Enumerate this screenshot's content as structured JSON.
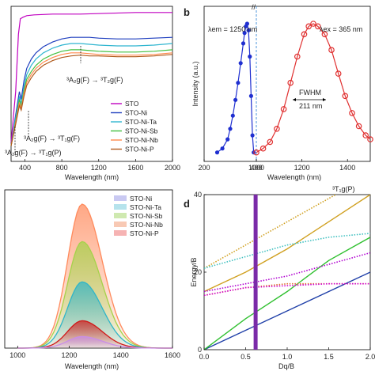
{
  "chart_data": [
    {
      "id": "a",
      "panel_label": "",
      "type": "line",
      "xlabel": "Wavelength (nm)",
      "xlim": [
        250,
        2000
      ],
      "x_ticks": [
        "400",
        "800",
        "1200",
        "1600",
        "2000"
      ],
      "legend": [
        "STO",
        "STO-Ni",
        "STO-Ni-Ta",
        "STO-Ni-Sb",
        "STO-Ni-Nb",
        "STO-Ni-P"
      ],
      "colors": [
        "#c000c0",
        "#1f3fbf",
        "#2fb5d0",
        "#44c040",
        "#ff8a4c",
        "#b05a1c"
      ],
      "annotations": [
        "³A₂g(F) → ³T₂g(F)",
        "³A₂g(F) → ³T₁g(F)",
        "³A₂g(F) → ³T₁g(P)"
      ],
      "series": [
        {
          "name": "STO",
          "x": [
            250,
            300,
            330,
            350,
            380,
            420,
            500,
            700,
            1000,
            1300,
            1600,
            2000
          ],
          "y": [
            0.12,
            0.45,
            0.82,
            0.92,
            0.93,
            0.94,
            0.945,
            0.95,
            0.95,
            0.955,
            0.96,
            0.96
          ]
        },
        {
          "name": "STO-Ni",
          "x": [
            250,
            300,
            340,
            360,
            390,
            420,
            470,
            520,
            600,
            700,
            800,
            900,
            1000,
            1100,
            1200,
            1400,
            1600,
            1800,
            2000
          ],
          "y": [
            0.1,
            0.3,
            0.45,
            0.4,
            0.52,
            0.6,
            0.66,
            0.7,
            0.74,
            0.77,
            0.79,
            0.8,
            0.8,
            0.8,
            0.795,
            0.79,
            0.79,
            0.795,
            0.8
          ]
        },
        {
          "name": "STO-Ni-Ta",
          "x": [
            250,
            300,
            340,
            360,
            390,
            420,
            470,
            520,
            600,
            700,
            800,
            900,
            1000,
            1100,
            1200,
            1400,
            1600,
            1800,
            2000
          ],
          "y": [
            0.1,
            0.28,
            0.42,
            0.37,
            0.48,
            0.56,
            0.62,
            0.66,
            0.7,
            0.73,
            0.75,
            0.76,
            0.76,
            0.755,
            0.75,
            0.745,
            0.745,
            0.75,
            0.76
          ]
        },
        {
          "name": "STO-Ni-Sb",
          "x": [
            250,
            300,
            340,
            360,
            390,
            420,
            470,
            520,
            600,
            700,
            800,
            900,
            1000,
            1100,
            1200,
            1400,
            1600,
            1800,
            2000
          ],
          "y": [
            0.1,
            0.26,
            0.4,
            0.35,
            0.46,
            0.53,
            0.58,
            0.62,
            0.66,
            0.69,
            0.71,
            0.72,
            0.72,
            0.715,
            0.71,
            0.705,
            0.705,
            0.71,
            0.72
          ]
        },
        {
          "name": "STO-Ni-Nb",
          "x": [
            250,
            300,
            340,
            360,
            390,
            420,
            470,
            520,
            600,
            700,
            800,
            900,
            1000,
            1100,
            1200,
            1400,
            1600,
            1800,
            2000
          ],
          "y": [
            0.1,
            0.25,
            0.38,
            0.34,
            0.44,
            0.51,
            0.56,
            0.6,
            0.64,
            0.67,
            0.69,
            0.7,
            0.7,
            0.695,
            0.69,
            0.685,
            0.685,
            0.69,
            0.7
          ]
        },
        {
          "name": "STO-Ni-P",
          "x": [
            250,
            300,
            340,
            360,
            390,
            420,
            470,
            520,
            600,
            700,
            800,
            900,
            1000,
            1100,
            1200,
            1400,
            1600,
            1800,
            2000
          ],
          "y": [
            0.1,
            0.24,
            0.36,
            0.33,
            0.42,
            0.49,
            0.54,
            0.58,
            0.62,
            0.65,
            0.67,
            0.68,
            0.685,
            0.68,
            0.68,
            0.675,
            0.675,
            0.68,
            0.69
          ]
        }
      ]
    },
    {
      "id": "b",
      "panel_label": "b",
      "type": "scatter",
      "ylabel": "Intensity (a.u.)",
      "xlabel": "Wavelength (nm)",
      "x_ticks": [
        "200",
        "400",
        "1000",
        "1200",
        "1400"
      ],
      "annotations": [
        "λem = 1250 nm",
        "λex = 365 nm",
        "FWHM",
        "211 nm"
      ],
      "series": [
        {
          "name": "excitation",
          "color": "#1f2fd0",
          "x": [
            250,
            270,
            290,
            300,
            310,
            320,
            330,
            340,
            350,
            355,
            360,
            365,
            370,
            375,
            380,
            385,
            390
          ],
          "y": [
            0.02,
            0.05,
            0.12,
            0.2,
            0.3,
            0.42,
            0.55,
            0.7,
            0.85,
            0.93,
            0.98,
            1.0,
            0.95,
            0.75,
            0.45,
            0.15,
            0.02
          ]
        },
        {
          "name": "emission",
          "color": "#e03030",
          "x": [
            1000,
            1030,
            1060,
            1090,
            1120,
            1150,
            1180,
            1210,
            1230,
            1250,
            1270,
            1300,
            1330,
            1360,
            1390,
            1420,
            1450,
            1480,
            1500
          ],
          "y": [
            0.02,
            0.05,
            0.1,
            0.2,
            0.35,
            0.55,
            0.75,
            0.92,
            0.98,
            1.0,
            0.98,
            0.92,
            0.8,
            0.62,
            0.45,
            0.32,
            0.22,
            0.15,
            0.12
          ]
        }
      ]
    },
    {
      "id": "c",
      "panel_label": "",
      "type": "area",
      "xlabel": "Wavelength (nm)",
      "x_ticks": [
        "1000",
        "1200",
        "1400",
        "1600"
      ],
      "legend": [
        "STO-Ni",
        "STO-Ni-Ta",
        "STO-Ni-Sb",
        "STO-Ni-Nb",
        "STO-Ni-P"
      ],
      "series": [
        {
          "name": "STO-Ni-Nb",
          "color": "#ff8a5c",
          "peak": 1.0
        },
        {
          "name": "STO-Ni-Sb",
          "color": "#a5d24a",
          "peak": 0.74
        },
        {
          "name": "STO-Ni-Ta",
          "color": "#30b5c8",
          "peak": 0.46
        },
        {
          "name": "STO-Ni-P",
          "color": "#d01818",
          "peak": 0.19
        },
        {
          "name": "STO-Ni",
          "color": "#c98ee8",
          "peak": 0.08
        }
      ],
      "peak_nm": 1250
    },
    {
      "id": "d",
      "panel_label": "d",
      "type": "line",
      "ylabel": "Energy/B",
      "xlabel": "Dq/B",
      "xlim": [
        0,
        2.0
      ],
      "ylim": [
        0,
        40
      ],
      "x_ticks": [
        "0.0",
        "0.5",
        "1.0",
        "1.5",
        "2.0"
      ],
      "y_ticks": [
        "0",
        "20",
        "40"
      ],
      "annotations": [
        "³T₁g(P)"
      ],
      "marker_x": 0.62,
      "marker_color": "#7a2aa8",
      "series": [
        {
          "color": "#1f3fa8",
          "dashed": false,
          "x": [
            0,
            2.0
          ],
          "y": [
            0,
            20
          ]
        },
        {
          "color": "#30c030",
          "dashed": false,
          "x": [
            0,
            0.5,
            1.0,
            1.5,
            2.0
          ],
          "y": [
            0,
            8,
            15,
            23,
            29
          ]
        },
        {
          "color": "#d0a020",
          "dashed": false,
          "x": [
            0,
            0.5,
            1.0,
            1.5,
            2.0
          ],
          "y": [
            15,
            20,
            26,
            33,
            40
          ]
        },
        {
          "color": "#d0a020",
          "dashed": true,
          "x": [
            0,
            0.5,
            1.0,
            1.5,
            2.0
          ],
          "y": [
            21,
            27,
            33,
            39,
            45
          ]
        },
        {
          "color": "#b000d0",
          "dashed": true,
          "x": [
            0,
            0.5,
            1.0,
            1.5,
            2.0
          ],
          "y": [
            15,
            17,
            19,
            22,
            25
          ]
        },
        {
          "color": "#40c0c0",
          "dashed": true,
          "x": [
            0,
            0.5,
            1.0,
            1.5,
            2.0
          ],
          "y": [
            21,
            24,
            27,
            29,
            30
          ]
        },
        {
          "color": "#e07030",
          "dashed": true,
          "x": [
            0,
            0.5,
            1.0,
            1.5,
            2.0
          ],
          "y": [
            14,
            16,
            17,
            17,
            17
          ]
        },
        {
          "color": "#d000d0",
          "dashed": true,
          "x": [
            0,
            0.5,
            1.0,
            1.5,
            2.0
          ],
          "y": [
            14,
            16,
            16.5,
            17,
            17
          ]
        }
      ]
    }
  ]
}
